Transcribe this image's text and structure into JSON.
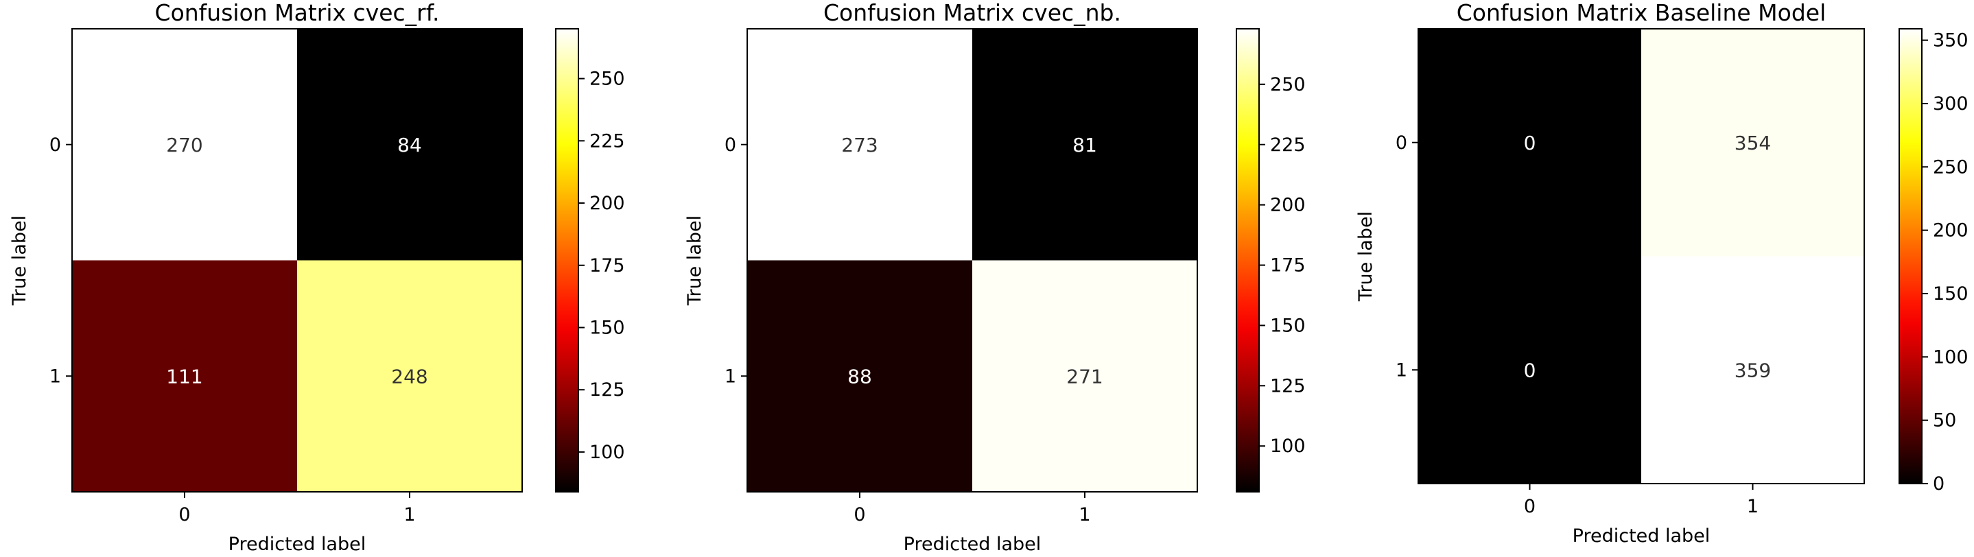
{
  "chart_data": [
    {
      "type": "heatmap",
      "title": "Confusion Matrix cvec_rf.",
      "xlabel": "Predicted label",
      "ylabel": "True label",
      "x_ticks": [
        "0",
        "1"
      ],
      "y_ticks": [
        "0",
        "1"
      ],
      "matrix": [
        [
          270,
          84
        ],
        [
          111,
          248
        ]
      ],
      "cell_labels": [
        [
          "270",
          "84"
        ],
        [
          "111",
          "248"
        ]
      ],
      "colormap": "hot",
      "colorbar_range": [
        84,
        270
      ],
      "colorbar_ticks": [
        100,
        125,
        150,
        175,
        200,
        225,
        250
      ],
      "colorbar_tick_labels": [
        "100",
        "125",
        "150",
        "175",
        "200",
        "225",
        "250"
      ],
      "grid": false
    },
    {
      "type": "heatmap",
      "title": "Confusion Matrix cvec_nb.",
      "xlabel": "Predicted label",
      "ylabel": "True label",
      "x_ticks": [
        "0",
        "1"
      ],
      "y_ticks": [
        "0",
        "1"
      ],
      "matrix": [
        [
          273,
          81
        ],
        [
          88,
          271
        ]
      ],
      "cell_labels": [
        [
          "273",
          "81"
        ],
        [
          "88",
          "271"
        ]
      ],
      "colormap": "hot",
      "colorbar_range": [
        81,
        273
      ],
      "colorbar_ticks": [
        100,
        125,
        150,
        175,
        200,
        225,
        250
      ],
      "colorbar_tick_labels": [
        "100",
        "125",
        "150",
        "175",
        "200",
        "225",
        "250"
      ],
      "grid": false
    },
    {
      "type": "heatmap",
      "title": "Confusion Matrix Baseline Model",
      "xlabel": "Predicted label",
      "ylabel": "True label",
      "x_ticks": [
        "0",
        "1"
      ],
      "y_ticks": [
        "0",
        "1"
      ],
      "matrix": [
        [
          0,
          354
        ],
        [
          0,
          359
        ]
      ],
      "cell_labels": [
        [
          "0",
          "354"
        ],
        [
          "0",
          "359"
        ]
      ],
      "colormap": "hot",
      "colorbar_range": [
        0,
        359
      ],
      "colorbar_ticks": [
        0,
        50,
        100,
        150,
        200,
        250,
        300,
        350
      ],
      "colorbar_tick_labels": [
        "0",
        "50",
        "100",
        "150",
        "200",
        "250",
        "300",
        "350"
      ],
      "grid": false
    }
  ]
}
